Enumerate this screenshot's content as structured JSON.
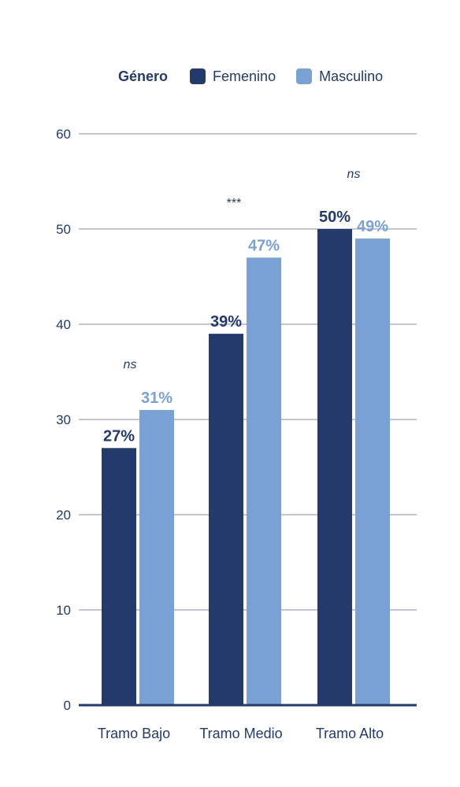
{
  "chart_data": {
    "type": "bar",
    "legend": {
      "title": "Género",
      "placement": "top-right"
    },
    "categories": [
      "Tramo Bajo",
      "Tramo Medio",
      "Tramo Alto"
    ],
    "series": [
      {
        "name": "Femenino",
        "color": "#233a6b",
        "values": [
          27,
          39,
          50
        ],
        "labels": [
          "27%",
          "39%",
          "50%"
        ]
      },
      {
        "name": "Masculino",
        "color": "#7aa1d4",
        "values": [
          31,
          47,
          49
        ],
        "labels": [
          "31%",
          "47%",
          "49%"
        ]
      }
    ],
    "significance": [
      "ns",
      "***",
      "ns"
    ],
    "ylim": [
      0,
      60
    ],
    "yticks": [
      0,
      10,
      20,
      30,
      40,
      50,
      60
    ],
    "grid": true,
    "xlabel": "",
    "ylabel": ""
  }
}
